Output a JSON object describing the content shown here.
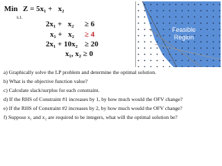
{
  "objective": {
    "sense": "Min",
    "expression": "Z = 5x₁ +   x₂"
  },
  "subject_to": "s.t.",
  "constraints": [
    {
      "lhs": "2x₁ +   x₂",
      "rhs": "≥ 6"
    },
    {
      "lhs": "x₁ +   x₂",
      "rhs": "≥ 4"
    },
    {
      "lhs": "2x₁ + 10x₂",
      "rhs": "≥ 20"
    }
  ],
  "nonnegativity": "x₁, x₂ ≥ 0",
  "graph": {
    "region_label": [
      "Feasible",
      "Region"
    ]
  },
  "questions": [
    "a) Graphically solve the LP problem and determine the optimal solution.",
    "b) What is the objective function value?",
    "c) Calculate slack/surplus for each constraint.",
    "d) If the RHS of Constraint #1 increases by 1, by how much would the OFV change?",
    "e) If the RHS of Constraint #2 increases by 2, by how much would the OFV change?",
    "f) Suppose x₁ and x₂ are required to be integers, what will the optimal solution be?"
  ]
}
